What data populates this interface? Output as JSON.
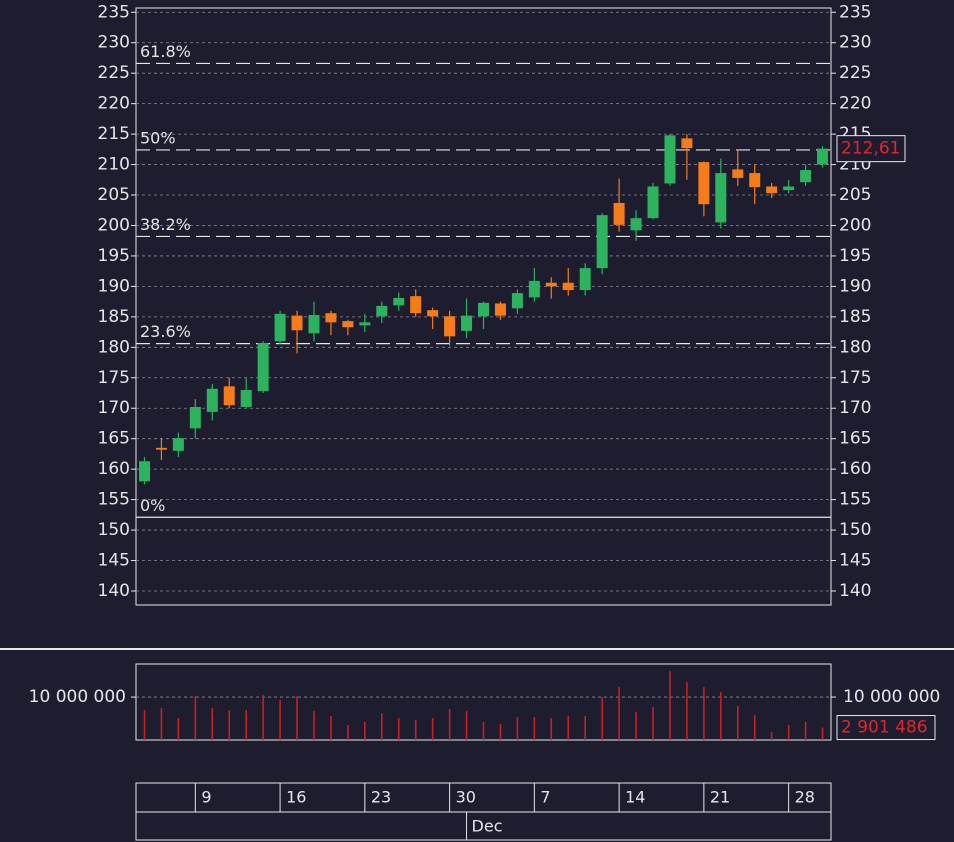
{
  "chart_data": {
    "type": "candlestick",
    "categories": [
      null,
      null,
      null,
      "9",
      null,
      null,
      null,
      null,
      "16",
      null,
      null,
      null,
      null,
      "23",
      null,
      null,
      null,
      null,
      "30",
      null,
      null,
      null,
      null,
      "7",
      null,
      null,
      null,
      null,
      "14",
      null,
      null,
      null,
      null,
      "21",
      null,
      null,
      null,
      null,
      "28",
      null,
      null
    ],
    "month": {
      "label": "Dec",
      "start_index": 19
    },
    "open": [
      158.0,
      163.5,
      163.0,
      166.7,
      169.4,
      173.6,
      170.2,
      172.8,
      181.0,
      185.2,
      182.3,
      185.6,
      184.3,
      183.6,
      185.1,
      186.9,
      188.4,
      186.1,
      185.1,
      182.7,
      185.1,
      187.2,
      186.4,
      188.2,
      190.6,
      190.6,
      189.4,
      193.0,
      203.7,
      199.2,
      201.2,
      206.9,
      214.3,
      210.4,
      200.5,
      209.2,
      208.6,
      206.4,
      205.8,
      207.1,
      210.0
    ],
    "high": [
      162.0,
      165.0,
      166.0,
      171.5,
      174.0,
      175.0,
      175.0,
      181.0,
      186.0,
      186.0,
      187.5,
      186.0,
      184.5,
      185.5,
      187.5,
      189.0,
      189.5,
      186.5,
      186.0,
      188.0,
      187.5,
      187.5,
      189.5,
      193.0,
      191.5,
      193.0,
      193.8,
      202.0,
      207.7,
      202.5,
      207.0,
      215.0,
      215.0,
      210.5,
      211.0,
      212.5,
      210.0,
      207.0,
      207.5,
      210.0,
      213.0
    ],
    "low": [
      157.5,
      161.5,
      162.0,
      165.0,
      168.0,
      170.0,
      170.0,
      172.5,
      180.5,
      179.0,
      181.0,
      182.0,
      182.0,
      182.5,
      184.0,
      186.0,
      185.0,
      183.0,
      180.3,
      181.5,
      183.0,
      184.5,
      185.5,
      187.5,
      188.0,
      188.5,
      188.5,
      192.0,
      199.0,
      197.5,
      201.0,
      206.5,
      207.5,
      201.5,
      199.5,
      206.5,
      203.5,
      204.5,
      205.3,
      206.5,
      209.5
    ],
    "close": [
      161.3,
      163.2,
      165.1,
      170.2,
      173.2,
      170.5,
      173.0,
      180.7,
      185.5,
      182.8,
      185.3,
      184.1,
      183.3,
      184.1,
      186.8,
      188.1,
      185.6,
      185.1,
      181.8,
      185.2,
      187.3,
      185.2,
      188.9,
      190.9,
      190.0,
      189.4,
      193.0,
      201.7,
      200.1,
      201.2,
      206.4,
      214.8,
      212.7,
      203.5,
      208.6,
      207.8,
      206.3,
      205.3,
      206.4,
      209.1,
      212.61
    ],
    "up_color": "#2db35d",
    "down_color": "#f57c18",
    "ylim": [
      137.7,
      235.7
    ],
    "yticks": [
      140,
      145,
      150,
      155,
      160,
      165,
      170,
      175,
      180,
      185,
      190,
      195,
      200,
      205,
      210,
      215,
      220,
      225,
      230,
      235
    ],
    "grid": true,
    "last_price": {
      "value": 212.61,
      "label": "212,61"
    },
    "fib_levels": [
      {
        "label": "0%",
        "value": 152.1
      },
      {
        "label": "23.6%",
        "value": 180.6
      },
      {
        "label": "38.2%",
        "value": 198.2
      },
      {
        "label": "50%",
        "value": 212.4
      },
      {
        "label": "61.8%",
        "value": 226.6
      }
    ],
    "volume": {
      "values": [
        6980000,
        7440000,
        5120000,
        10230000,
        7440000,
        6980000,
        6980000,
        10470000,
        9300000,
        10230000,
        6740000,
        5580000,
        3490000,
        4190000,
        6280000,
        5120000,
        4650000,
        5120000,
        7210000,
        6740000,
        4190000,
        3720000,
        5350000,
        5350000,
        5120000,
        5580000,
        5580000,
        10000000,
        12330000,
        6510000,
        7670000,
        16050000,
        13490000,
        12330000,
        11160000,
        7910000,
        5810000,
        1860000,
        3490000,
        4190000,
        2901486
      ],
      "color": "#cc1f1f",
      "ylim": [
        0,
        17700000
      ],
      "yticks": [
        {
          "value": 10000000,
          "label": "10 000 000"
        }
      ],
      "last_label": "2 901 486"
    }
  }
}
